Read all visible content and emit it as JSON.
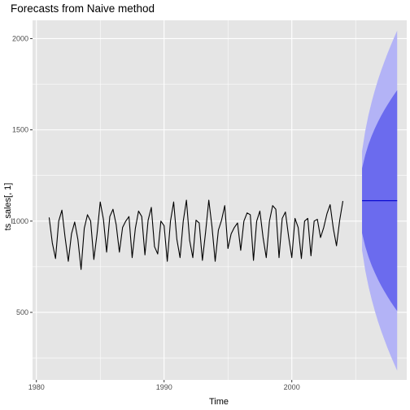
{
  "chart_data": {
    "type": "line",
    "title": "Forecasts from Naive method",
    "xlabel": "Time",
    "ylabel": "ts_sales[, 1]",
    "xlim": [
      1979.7,
      2009.0
    ],
    "ylim": [
      130,
      2100
    ],
    "x_ticks": [
      1980,
      1990,
      2000
    ],
    "x_tick_labels": [
      "1980",
      "1990",
      "2000"
    ],
    "y_ticks": [
      500,
      1000,
      1500,
      2000
    ],
    "y_tick_labels": [
      "500",
      "1000",
      "1500",
      "2000"
    ],
    "grid": true,
    "legend": "none",
    "colors": {
      "panel": "#e5e5e5",
      "grid": "#ffffff",
      "series": "#000000",
      "forecast": "#0000cc",
      "pi80": "#6b6bee",
      "pi95": "#b3b3f6"
    },
    "series": [
      {
        "start": 1981.0,
        "frequency": 4,
        "values": [
          1020,
          880,
          795,
          1000,
          1060,
          910,
          780,
          930,
          995,
          900,
          735,
          960,
          1035,
          1000,
          790,
          930,
          1105,
          1010,
          830,
          1025,
          1065,
          980,
          830,
          965,
          1000,
          1025,
          800,
          960,
          1055,
          1025,
          815,
          1005,
          1075,
          860,
          820,
          1000,
          975,
          780,
          1000,
          1105,
          900,
          800,
          1000,
          1115,
          895,
          800,
          1005,
          990,
          785,
          940,
          1115,
          970,
          780,
          950,
          1005,
          1085,
          850,
          930,
          965,
          990,
          840,
          1000,
          1045,
          1035,
          785,
          1000,
          1055,
          910,
          800,
          1000,
          1085,
          1065,
          800,
          1015,
          1050,
          915,
          800,
          1015,
          965,
          795,
          1000,
          1015,
          810,
          1000,
          1010,
          910,
          965,
          1040,
          1090,
          960,
          865,
          1005,
          1110
        ]
      }
    ],
    "forecast": {
      "x": [
        2005.5,
        2008.25
      ],
      "mean": [
        1112,
        1112
      ],
      "pi80": {
        "x": [
          2005.5,
          2005.75,
          2006.0,
          2006.25,
          2006.5,
          2006.75,
          2007.0,
          2007.25,
          2007.5,
          2007.75,
          2008.0,
          2008.25
        ],
        "lower": [
          935,
          862,
          805,
          758,
          717,
          680,
          646,
          615,
          586,
          558,
          532,
          507
        ],
        "upper": [
          1289,
          1362,
          1419,
          1466,
          1507,
          1544,
          1578,
          1609,
          1638,
          1666,
          1692,
          1717
        ]
      },
      "pi95": {
        "x": [
          2005.5,
          2005.75,
          2006.0,
          2006.25,
          2006.5,
          2006.75,
          2007.0,
          2007.25,
          2007.5,
          2007.75,
          2008.0,
          2008.25
        ],
        "lower": [
          841,
          730,
          644,
          572,
          508,
          450,
          398,
          350,
          304,
          261,
          220,
          180
        ],
        "upper": [
          1383,
          1494,
          1580,
          1652,
          1716,
          1774,
          1826,
          1874,
          1920,
          1963,
          2004,
          2044
        ]
      }
    }
  }
}
